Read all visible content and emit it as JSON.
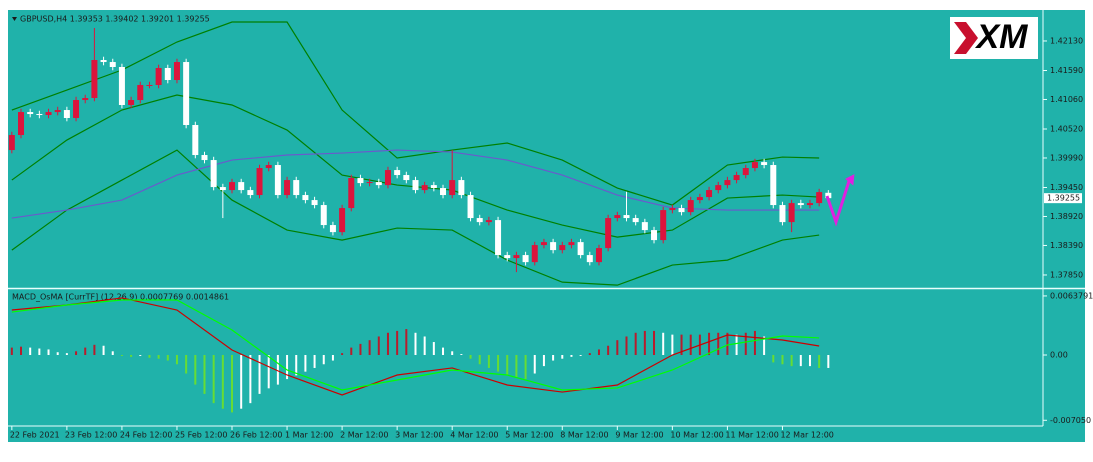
{
  "logo": "XM",
  "chart_data": [
    {
      "type": "candlestick",
      "title": "GBPUSD,H4  1.39353 1.39402 1.39201 1.39255",
      "up_color": "#dc143c",
      "down_color": "#ffffff",
      "open": [
        1.40135,
        1.4041,
        1.4083,
        1.40794,
        1.40776,
        1.4083,
        1.40867,
        1.40721,
        1.4105,
        1.41087,
        1.41782,
        1.41745,
        1.41654,
        1.40959,
        1.4105,
        1.41325,
        1.41325,
        1.41636,
        1.41416,
        1.41745,
        1.40593,
        1.40044,
        1.39952,
        1.39458,
        1.39403,
        1.39549,
        1.39403,
        1.39312,
        1.39806,
        1.39861,
        1.39312,
        1.39586,
        1.39312,
        1.3922,
        1.39129,
        1.38763,
        1.38634,
        1.39074,
        1.39623,
        1.39531,
        1.39549,
        1.39494,
        1.39769,
        1.39678,
        1.39586,
        1.39403,
        1.39494,
        1.3944,
        1.39312,
        1.39586,
        1.39312,
        1.38891,
        1.38817,
        1.38854,
        1.38214,
        1.38159,
        1.38214,
        1.38085,
        1.38397,
        1.38451,
        1.38305,
        1.38397,
        1.38451,
        1.38214,
        1.38085,
        1.38342,
        1.38891,
        1.38946,
        1.38891,
        1.38817,
        1.38671,
        1.38488,
        1.39037,
        1.39074,
        1.39,
        1.3922,
        1.39275,
        1.39403,
        1.39494,
        1.39586,
        1.39678,
        1.39806,
        1.39915,
        1.39861,
        1.39129,
        1.38817,
        1.39165,
        1.39129,
        1.39165,
        1.39353
      ],
      "high": [
        1.4047,
        1.4089,
        1.4089,
        1.40854,
        1.4089,
        1.40927,
        1.40927,
        1.4111,
        1.41147,
        1.42368,
        1.41842,
        1.41805,
        1.41714,
        1.4111,
        1.41385,
        1.41385,
        1.41696,
        1.41696,
        1.41805,
        1.41805,
        1.40653,
        1.40104,
        1.40012,
        1.39518,
        1.39609,
        1.39609,
        1.39463,
        1.39866,
        1.39921,
        1.39921,
        1.39646,
        1.39646,
        1.39372,
        1.3928,
        1.39189,
        1.38823,
        1.39134,
        1.39683,
        1.39683,
        1.39609,
        1.39609,
        1.39829,
        1.39829,
        1.39738,
        1.39646,
        1.39554,
        1.39554,
        1.395,
        1.40135,
        1.39646,
        1.39372,
        1.38951,
        1.38914,
        1.38914,
        1.38274,
        1.38274,
        1.38274,
        1.38457,
        1.38511,
        1.38511,
        1.38457,
        1.38511,
        1.38511,
        1.38274,
        1.38402,
        1.38951,
        1.39006,
        1.39372,
        1.38951,
        1.38877,
        1.38731,
        1.39097,
        1.39134,
        1.39134,
        1.3928,
        1.39335,
        1.39463,
        1.39554,
        1.39646,
        1.39738,
        1.39866,
        1.39975,
        1.39975,
        1.39921,
        1.39189,
        1.39225,
        1.39225,
        1.39225,
        1.39426,
        1.39402
      ],
      "low": [
        1.40075,
        1.4035,
        1.40734,
        1.40716,
        1.40716,
        1.4077,
        1.40661,
        1.40661,
        1.4099,
        1.41027,
        1.41685,
        1.41594,
        1.40899,
        1.40899,
        1.4099,
        1.41265,
        1.41265,
        1.41356,
        1.41356,
        1.40533,
        1.39984,
        1.39892,
        1.39398,
        1.38891,
        1.39343,
        1.39343,
        1.39252,
        1.39252,
        1.39746,
        1.39252,
        1.39252,
        1.39252,
        1.3916,
        1.39069,
        1.38703,
        1.38574,
        1.38574,
        1.39014,
        1.39471,
        1.39471,
        1.39434,
        1.39434,
        1.39618,
        1.39526,
        1.39343,
        1.39343,
        1.3938,
        1.39252,
        1.39252,
        1.39252,
        1.38831,
        1.38757,
        1.38757,
        1.38154,
        1.38099,
        1.37902,
        1.38025,
        1.38025,
        1.38337,
        1.38245,
        1.38245,
        1.38337,
        1.38154,
        1.38025,
        1.38025,
        1.38282,
        1.38831,
        1.38831,
        1.38757,
        1.38611,
        1.38428,
        1.38428,
        1.38977,
        1.3894,
        1.3894,
        1.3916,
        1.39215,
        1.39343,
        1.39434,
        1.39526,
        1.39618,
        1.39746,
        1.39801,
        1.39069,
        1.38757,
        1.38634,
        1.39069,
        1.39069,
        1.39105,
        1.39201
      ],
      "close": [
        1.4041,
        1.4083,
        1.40794,
        1.40776,
        1.4083,
        1.40867,
        1.40721,
        1.4105,
        1.41087,
        1.41782,
        1.41745,
        1.41654,
        1.40959,
        1.4105,
        1.41325,
        1.41325,
        1.41636,
        1.41416,
        1.41745,
        1.40593,
        1.40044,
        1.39952,
        1.39458,
        1.39403,
        1.39549,
        1.39403,
        1.39312,
        1.39806,
        1.39861,
        1.39312,
        1.39586,
        1.39312,
        1.3922,
        1.39129,
        1.38763,
        1.38634,
        1.39074,
        1.39623,
        1.39531,
        1.39549,
        1.39494,
        1.39769,
        1.39678,
        1.39586,
        1.39403,
        1.39494,
        1.3944,
        1.39312,
        1.39586,
        1.39312,
        1.38891,
        1.38817,
        1.38854,
        1.38214,
        1.38159,
        1.38214,
        1.38085,
        1.38397,
        1.38451,
        1.38305,
        1.38397,
        1.38451,
        1.38214,
        1.38085,
        1.38342,
        1.38891,
        1.38946,
        1.38891,
        1.38817,
        1.38671,
        1.38488,
        1.39037,
        1.39074,
        1.39,
        1.3922,
        1.39275,
        1.39403,
        1.39494,
        1.39586,
        1.39678,
        1.39806,
        1.39915,
        1.39861,
        1.39129,
        1.38817,
        1.39165,
        1.39129,
        1.39165,
        1.39366,
        1.39255
      ],
      "series": [
        {
          "color": "#008000",
          "x": [
            0,
            6,
            12,
            18,
            24,
            30,
            36,
            42,
            48,
            54,
            60,
            66,
            72,
            78,
            84,
            88
          ],
          "values": [
            1.40867,
            1.41233,
            1.41599,
            1.42111,
            1.42477,
            1.42477,
            1.40867,
            1.39989,
            1.40135,
            1.40263,
            1.39952,
            1.3944,
            1.39129,
            1.39861,
            1.40007,
            1.39989
          ]
        },
        {
          "color": "#008000",
          "x": [
            0,
            6,
            12,
            18,
            24,
            30,
            36,
            42,
            48,
            54,
            60,
            66,
            72,
            78,
            84,
            88
          ],
          "values": [
            1.39586,
            1.40318,
            1.40867,
            1.41142,
            1.40959,
            1.40501,
            1.39678,
            1.39494,
            1.39403,
            1.39037,
            1.38763,
            1.38543,
            1.38671,
            1.39257,
            1.39312,
            1.39275
          ]
        },
        {
          "color": "#008000",
          "x": [
            0,
            6,
            12,
            18,
            24,
            30,
            36,
            42,
            48,
            54,
            60,
            66,
            72,
            78,
            84,
            88
          ],
          "values": [
            1.38305,
            1.39037,
            1.39586,
            1.40135,
            1.3922,
            1.38671,
            1.38488,
            1.38708,
            1.38671,
            1.38122,
            1.37719,
            1.37664,
            1.38031,
            1.38122,
            1.38488,
            1.3858
          ]
        },
        {
          "color": "#6a5acd",
          "x": [
            0,
            6,
            12,
            18,
            24,
            30,
            36,
            42,
            48,
            54,
            60,
            66,
            72,
            78,
            84,
            88
          ],
          "values": [
            1.38891,
            1.39037,
            1.3922,
            1.39678,
            1.39952,
            1.40044,
            1.4008,
            1.40135,
            1.40098,
            1.39952,
            1.39678,
            1.39312,
            1.39074,
            1.39037,
            1.39037,
            1.39037
          ]
        }
      ],
      "current_price": 1.39255,
      "xlim": [
        -0.2,
        112.4
      ],
      "xticks": [
        {
          "value": 0,
          "label": "22 Feb 2021"
        },
        {
          "value": 6,
          "label": "23 Feb 12:00"
        },
        {
          "value": 12,
          "label": "24 Feb 12:00"
        },
        {
          "value": 18,
          "label": "25 Feb 12:00"
        },
        {
          "value": 24,
          "label": "26 Feb 12:00"
        },
        {
          "value": 30,
          "label": "1 Mar 12:00"
        },
        {
          "value": 36,
          "label": "2 Mar 12:00"
        },
        {
          "value": 42,
          "label": "3 Mar 12:00"
        },
        {
          "value": 48,
          "label": "4 Mar 12:00"
        },
        {
          "value": 54,
          "label": "5 Mar 12:00"
        },
        {
          "value": 60,
          "label": "8 Mar 12:00"
        },
        {
          "value": 66,
          "label": "9 Mar 12:00"
        },
        {
          "value": 72,
          "label": "10 Mar 12:00"
        },
        {
          "value": 78,
          "label": "11 Mar 12:00"
        },
        {
          "value": 84,
          "label": "12 Mar 12:00"
        }
      ],
      "ylim": [
        1.3763,
        1.4266
      ],
      "yticks": [
        {
          "value": 1.4213,
          "label": "1.42130"
        },
        {
          "value": 1.4159,
          "label": "1.41590"
        },
        {
          "value": 1.4106,
          "label": "1.41060"
        },
        {
          "value": 1.4052,
          "label": "1.40520"
        },
        {
          "value": 1.3999,
          "label": "1.39990"
        },
        {
          "value": 1.3945,
          "label": "1.39450"
        },
        {
          "value": 1.3892,
          "label": "1.38920"
        },
        {
          "value": 1.3839,
          "label": "1.38390"
        },
        {
          "value": 1.3785,
          "label": "1.37850"
        }
      ]
    },
    {
      "type": "macd",
      "title": "MACD_OsMA [CurrTF] (12,26,9) 0.0007769 0.0014861",
      "positive_rising_color": "#b81c2c",
      "negative_falling_color": "#66dd33",
      "other_color": "#ffffff",
      "values": [
        0.0008,
        0.0009,
        0.0008,
        0.0007,
        0.0006,
        0.0003,
        0.0002,
        0.0004,
        0.0008,
        0.0011,
        0.001,
        0.0004,
        -0.0001,
        -0.0002,
        -0.0001,
        -0.0003,
        -0.0004,
        -0.0006,
        -0.001,
        -0.002,
        -0.0032,
        -0.0042,
        -0.0052,
        -0.0058,
        -0.0062,
        -0.0058,
        -0.0052,
        -0.0042,
        -0.0036,
        -0.0032,
        -0.0026,
        -0.0022,
        -0.0018,
        -0.0014,
        -0.001,
        -0.0006,
        0.0002,
        0.0008,
        0.0012,
        0.0016,
        0.002,
        0.0024,
        0.0026,
        0.0028,
        0.0024,
        0.002,
        0.0014,
        0.0008,
        0.0004,
        0.0001,
        -0.0004,
        -0.001,
        -0.0014,
        -0.0018,
        -0.0022,
        -0.0024,
        -0.0026,
        -0.002,
        -0.0012,
        -0.0006,
        -0.0004,
        -0.0002,
        -0.0001,
        0.0002,
        0.0006,
        0.001,
        0.0016,
        0.002,
        0.0024,
        0.0026,
        0.0026,
        0.0024,
        0.0022,
        0.0022,
        0.0022,
        0.0022,
        0.0024,
        0.0024,
        0.0024,
        0.0022,
        0.0024,
        0.0026,
        0.002,
        -0.0008,
        -0.001,
        -0.0012,
        -0.0012,
        -0.0012,
        -0.0014,
        -0.0014
      ],
      "series": [
        {
          "color": "#cc0000",
          "x": [
            0,
            6,
            12,
            18,
            24,
            30,
            36,
            42,
            48,
            54,
            60,
            66,
            72,
            78,
            84,
            88
          ],
          "values": [
            0.00486,
            0.0054,
            0.00616,
            0.00486,
            0.00054,
            -0.00216,
            -0.00432,
            -0.00216,
            -0.0014,
            -0.00324,
            -0.004,
            -0.00324,
            0,
            0.00216,
            0.00162,
            0.00097
          ]
        },
        {
          "color": "#00ff00",
          "x": [
            0,
            6,
            12,
            18,
            24,
            30,
            36,
            42,
            48,
            54,
            60,
            66,
            72,
            78,
            84,
            88
          ],
          "values": [
            0.00464,
            0.0054,
            0.00594,
            0.00594,
            0.0027,
            -0.00162,
            -0.00378,
            -0.0027,
            -0.00162,
            -0.00216,
            -0.00378,
            -0.00356,
            -0.00162,
            0.00108,
            0.00205,
            0.00184
          ]
        }
      ],
      "xlim": [
        -0.2,
        112.4
      ],
      "ylim": [
        -0.00756,
        0.00702
      ],
      "yticks": [
        0.0063791,
        {
          "value": 0,
          "label": "0.00"
        },
        {
          "value": -0.00705,
          "label": "-0.007050"
        }
      ]
    }
  ]
}
